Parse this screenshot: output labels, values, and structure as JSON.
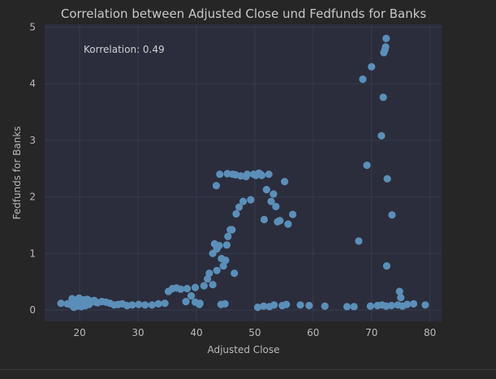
{
  "chart_data": {
    "type": "scatter",
    "title": "Correlation between Adjusted Close und Fedfunds for Banks",
    "xlabel": "Adjusted Close",
    "ylabel": "Fedfunds for Banks",
    "xlim": [
      14,
      82
    ],
    "ylim": [
      -0.2,
      5.05
    ],
    "xticks": [
      "20",
      "30",
      "40",
      "50",
      "60",
      "70",
      "80"
    ],
    "yticks": [
      "0",
      "1",
      "2",
      "3",
      "4",
      "5"
    ],
    "grid": true,
    "annotation": "Korrelation: 0.49",
    "point_color": "#5b8fb8",
    "x": [
      16.8,
      17.9,
      18.4,
      18.8,
      19.1,
      19.4,
      19.7,
      20.0,
      20.2,
      20.5,
      20.8,
      21.1,
      21.4,
      21.8,
      22.2,
      22.7,
      23.1,
      23.8,
      24.5,
      25.2,
      25.9,
      26.6,
      27.3,
      28.1,
      29.0,
      30.1,
      31.2,
      32.4,
      33.5,
      34.6,
      19.0,
      19.6,
      20.3,
      21.0,
      21.6,
      18.7,
      19.9,
      20.7,
      21.3,
      22.5,
      35.2,
      35.9,
      36.6,
      37.3,
      38.4,
      39.8,
      40.5,
      41.3,
      41.9,
      38.2,
      39.1,
      39.8,
      40.6,
      42.2,
      42.8,
      43.1,
      43.5,
      43.9,
      44.3,
      44.6,
      45.0,
      45.2,
      45.4,
      45.8,
      46.1,
      46.5,
      46.8,
      47.3,
      48.0,
      48.7,
      49.3,
      49.8,
      50.2,
      50.7,
      51.0,
      51.2,
      51.6,
      52.0,
      52.4,
      52.8,
      53.2,
      53.6,
      53.9,
      54.3,
      55.1,
      55.7,
      56.5,
      43.4,
      44.0,
      45.3,
      46.2,
      46.7,
      47.6,
      48.5,
      42.8,
      43.5,
      44.2,
      44.9,
      50.5,
      51.5,
      52.5,
      53.3,
      54.7,
      55.4,
      57.8,
      59.3,
      62.0,
      65.8,
      67.0,
      69.8,
      71.0,
      71.8,
      72.5,
      73.4,
      74.5,
      75.3,
      76.1,
      77.2,
      79.2,
      67.8,
      68.5,
      69.2,
      70.0,
      71.7,
      72.0,
      72.1,
      72.3,
      72.4,
      72.5,
      72.6,
      72.7,
      73.5,
      74.8,
      75.0
    ],
    "y": [
      0.12,
      0.11,
      0.1,
      0.13,
      0.15,
      0.17,
      0.19,
      0.2,
      0.18,
      0.16,
      0.14,
      0.12,
      0.13,
      0.16,
      0.15,
      0.14,
      0.13,
      0.15,
      0.14,
      0.12,
      0.09,
      0.1,
      0.11,
      0.08,
      0.09,
      0.1,
      0.09,
      0.09,
      0.11,
      0.12,
      0.05,
      0.07,
      0.06,
      0.08,
      0.1,
      0.2,
      0.21,
      0.18,
      0.19,
      0.17,
      0.33,
      0.38,
      0.39,
      0.37,
      0.38,
      0.4,
      0.1,
      0.43,
      0.55,
      0.15,
      0.25,
      0.14,
      0.12,
      0.65,
      1.0,
      1.17,
      1.08,
      1.14,
      0.91,
      0.78,
      0.88,
      1.15,
      1.3,
      1.42,
      1.42,
      0.65,
      1.7,
      1.82,
      1.92,
      2.4,
      1.95,
      2.4,
      2.38,
      2.42,
      2.4,
      2.38,
      1.6,
      2.13,
      2.4,
      1.92,
      2.05,
      1.83,
      1.56,
      1.58,
      2.27,
      1.52,
      1.69,
      2.2,
      2.4,
      2.41,
      2.4,
      2.39,
      2.37,
      2.36,
      0.45,
      0.7,
      0.1,
      0.11,
      0.05,
      0.07,
      0.06,
      0.09,
      0.08,
      0.1,
      0.09,
      0.08,
      0.07,
      0.06,
      0.06,
      0.07,
      0.08,
      0.09,
      0.07,
      0.08,
      0.09,
      0.07,
      0.1,
      0.11,
      0.09,
      1.22,
      4.08,
      2.56,
      4.3,
      3.08,
      3.76,
      4.55,
      4.6,
      4.65,
      4.8,
      0.78,
      2.32,
      1.68,
      0.33,
      0.22
    ]
  }
}
